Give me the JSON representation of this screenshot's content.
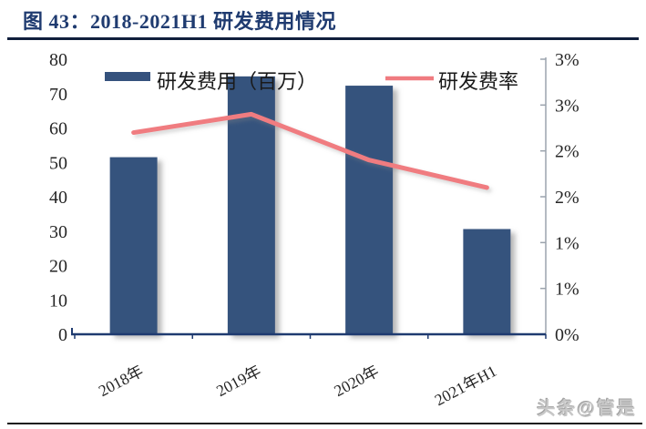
{
  "figure": {
    "title": "图 43：2018-2021H1 研发费用情况",
    "watermark": "头条@管是"
  },
  "colors": {
    "title": "#1F3B70",
    "bar": "#35527D",
    "line": "#F07B80",
    "axis_text": "#262626",
    "legend_text": "#1a1a1a",
    "x_axis_line": "#1F3B70",
    "right_axis_line": "#9BA3AD",
    "header_rule": "#101E3C",
    "footer_rule": "#1a1a1a",
    "watermark": "#c8c8c8"
  },
  "chart_data": {
    "type": "combo-bar-line",
    "categories": [
      "2018年",
      "2019年",
      "2020年",
      "2021年H1"
    ],
    "series": [
      {
        "name": "研发费用（百万）",
        "type": "bar",
        "axis": "left",
        "values": [
          51.5,
          75,
          72.3,
          30.6
        ]
      },
      {
        "name": "研发费率",
        "type": "line",
        "axis": "right",
        "unit": "%",
        "values": [
          2.2,
          2.4,
          1.9,
          1.6
        ]
      }
    ],
    "left_axis": {
      "min": 0,
      "max": 80,
      "step": 10,
      "tick_labels": [
        "0",
        "10",
        "20",
        "30",
        "40",
        "50",
        "60",
        "70",
        "80"
      ]
    },
    "right_axis": {
      "min": 0,
      "max": 3,
      "step": 0.5,
      "unit": "%",
      "tick_labels_top_to_bottom": [
        "3%",
        "3%",
        "2%",
        "2%",
        "1%",
        "1%",
        "0%"
      ]
    },
    "legend_position": "top",
    "gridlines": false,
    "x_label_rotation_deg": -28
  }
}
